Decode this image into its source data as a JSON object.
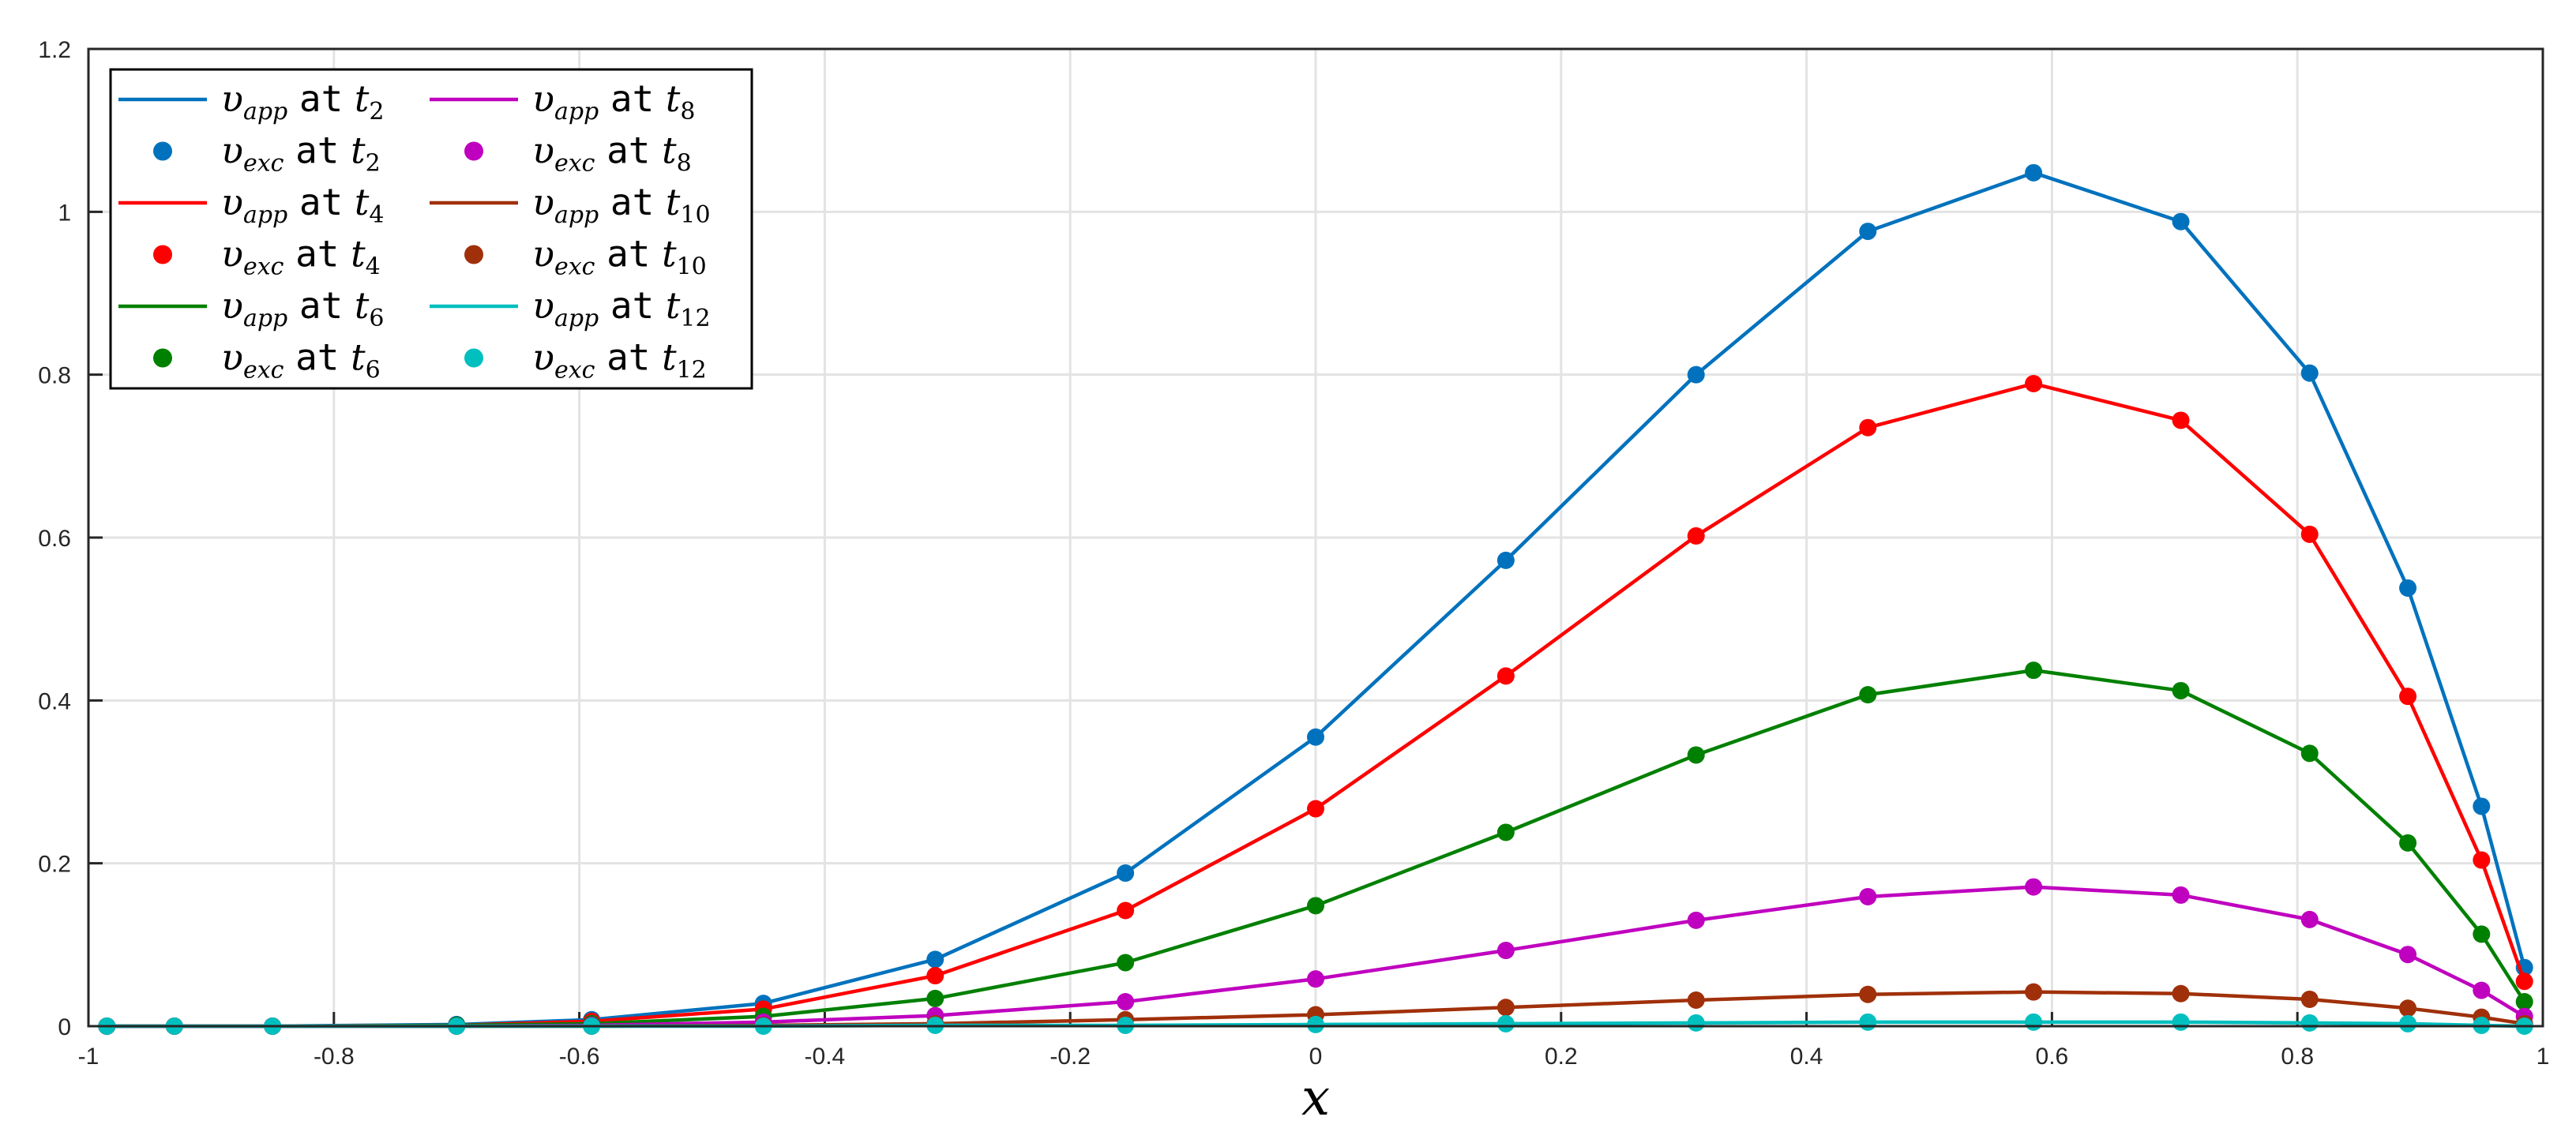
{
  "chart_data": {
    "type": "line",
    "title": "",
    "xlabel": "x",
    "ylabel": "",
    "xlim": [
      -1,
      1
    ],
    "ylim": [
      0,
      1.2
    ],
    "grid": true,
    "legend_position": "top-left",
    "x_ticks": [
      "-1",
      "-0.8",
      "-0.6",
      "-0.4",
      "-0.2",
      "0",
      "0.2",
      "0.4",
      "0.6",
      "0.8",
      "1"
    ],
    "y_ticks": [
      "0",
      "0.2",
      "0.4",
      "0.6",
      "0.8",
      "1",
      "1.2"
    ],
    "x": [
      -0.985,
      -0.93,
      -0.85,
      -0.7,
      -0.59,
      -0.45,
      -0.31,
      -0.155,
      0,
      0.155,
      0.31,
      0.45,
      0.585,
      0.705,
      0.81,
      0.89,
      0.95,
      0.985
    ],
    "series": [
      {
        "name": "t_2",
        "color": "#0072BD",
        "values": [
          0,
          0,
          0,
          0.002,
          0.008,
          0.028,
          0.082,
          0.188,
          0.355,
          0.572,
          0.8,
          0.976,
          1.048,
          0.988,
          0.802,
          0.538,
          0.27,
          0.072
        ]
      },
      {
        "name": "t_4",
        "color": "#FF0000",
        "values": [
          0,
          0,
          0,
          0.001,
          0.006,
          0.021,
          0.062,
          0.142,
          0.267,
          0.43,
          0.602,
          0.735,
          0.789,
          0.744,
          0.604,
          0.405,
          0.204,
          0.055
        ]
      },
      {
        "name": "t_6",
        "color": "#008000",
        "values": [
          0,
          0,
          0,
          0.001,
          0.003,
          0.012,
          0.034,
          0.078,
          0.148,
          0.238,
          0.333,
          0.407,
          0.437,
          0.412,
          0.335,
          0.225,
          0.113,
          0.03
        ]
      },
      {
        "name": "t_8",
        "color": "#BF00BF",
        "values": [
          0,
          0,
          0,
          0,
          0.001,
          0.005,
          0.013,
          0.03,
          0.058,
          0.093,
          0.13,
          0.159,
          0.171,
          0.161,
          0.131,
          0.088,
          0.044,
          0.012
        ]
      },
      {
        "name": "t_10",
        "color": "#A0300A",
        "values": [
          0,
          0,
          0,
          0,
          0,
          0.001,
          0.003,
          0.008,
          0.014,
          0.023,
          0.032,
          0.039,
          0.042,
          0.04,
          0.033,
          0.022,
          0.011,
          0.003
        ]
      },
      {
        "name": "t_12",
        "color": "#00BFBF",
        "values": [
          0,
          0,
          0,
          0,
          0,
          0,
          0.001,
          0.001,
          0.002,
          0.003,
          0.004,
          0.005,
          0.005,
          0.005,
          0.004,
          0.003,
          0.001,
          0
        ]
      }
    ],
    "legend": [
      {
        "kind": "line",
        "series": 0,
        "sym": "υ",
        "sub_sym": "app",
        "word": "at",
        "t": "t",
        "t_sub": "2"
      },
      {
        "kind": "marker",
        "series": 0,
        "sym": "υ",
        "sub_sym": "exc",
        "word": "at",
        "t": "t",
        "t_sub": "2"
      },
      {
        "kind": "line",
        "series": 1,
        "sym": "υ",
        "sub_sym": "app",
        "word": "at",
        "t": "t",
        "t_sub": "4"
      },
      {
        "kind": "marker",
        "series": 1,
        "sym": "υ",
        "sub_sym": "exc",
        "word": "at",
        "t": "t",
        "t_sub": "4"
      },
      {
        "kind": "line",
        "series": 2,
        "sym": "υ",
        "sub_sym": "app",
        "word": "at",
        "t": "t",
        "t_sub": "6"
      },
      {
        "kind": "marker",
        "series": 2,
        "sym": "υ",
        "sub_sym": "exc",
        "word": "at",
        "t": "t",
        "t_sub": "6"
      },
      {
        "kind": "line",
        "series": 3,
        "sym": "υ",
        "sub_sym": "app",
        "word": "at",
        "t": "t",
        "t_sub": "8"
      },
      {
        "kind": "marker",
        "series": 3,
        "sym": "υ",
        "sub_sym": "exc",
        "word": "at",
        "t": "t",
        "t_sub": "8"
      },
      {
        "kind": "line",
        "series": 4,
        "sym": "υ",
        "sub_sym": "app",
        "word": "at",
        "t": "t",
        "t_sub": "10"
      },
      {
        "kind": "marker",
        "series": 4,
        "sym": "υ",
        "sub_sym": "exc",
        "word": "at",
        "t": "t",
        "t_sub": "10"
      },
      {
        "kind": "line",
        "series": 5,
        "sym": "υ",
        "sub_sym": "app",
        "word": "at",
        "t": "t",
        "t_sub": "12"
      },
      {
        "kind": "marker",
        "series": 5,
        "sym": "υ",
        "sub_sym": "exc",
        "word": "at",
        "t": "t",
        "t_sub": "12"
      }
    ]
  }
}
